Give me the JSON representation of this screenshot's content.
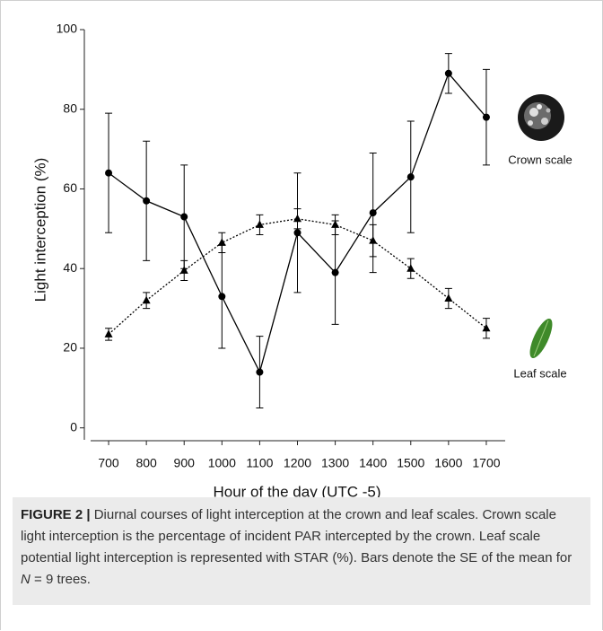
{
  "chart_data": {
    "type": "line",
    "y_label": "Light interception (%)",
    "x_label": "Hour of the day (UTC -5)",
    "x": [
      700,
      800,
      900,
      1000,
      1100,
      1200,
      1300,
      1400,
      1500,
      1600,
      1700
    ],
    "xlim": [
      650,
      1750
    ],
    "xticks": [
      700,
      800,
      900,
      1000,
      1100,
      1200,
      1300,
      1400,
      1500,
      1600,
      1700
    ],
    "ylim": [
      -3,
      100
    ],
    "yticks": [
      0,
      20,
      40,
      60,
      80,
      100
    ],
    "series": [
      {
        "name": "Crown scale",
        "color": "#000000",
        "marker": "circle",
        "dash": "solid",
        "values": [
          64,
          57,
          53,
          33,
          14,
          49,
          39,
          54,
          63,
          89,
          78
        ],
        "errors": [
          15,
          15,
          13,
          13,
          9,
          15,
          13,
          15,
          14,
          5,
          12
        ]
      },
      {
        "name": "Leaf scale",
        "color": "#000000",
        "marker": "triangle",
        "dash": "dotted",
        "values": [
          23.5,
          32,
          39.5,
          46.5,
          51,
          52.5,
          51,
          47,
          40,
          32.5,
          25
        ],
        "errors": [
          1.5,
          2,
          2.5,
          2.5,
          2.5,
          2.5,
          2.5,
          4,
          2.5,
          2.5,
          2.5
        ]
      }
    ]
  },
  "caption": {
    "label": "FIGURE 2 |",
    "text": " Diurnal courses of light interception at the crown and leaf scales. Crown scale light interception is the percentage of incident PAR intercepted by the crown. Leaf scale potential light interception is represented with STAR (%). Bars denote the SE of the mean for ",
    "italic": "N",
    "tail": " = 9 trees."
  }
}
